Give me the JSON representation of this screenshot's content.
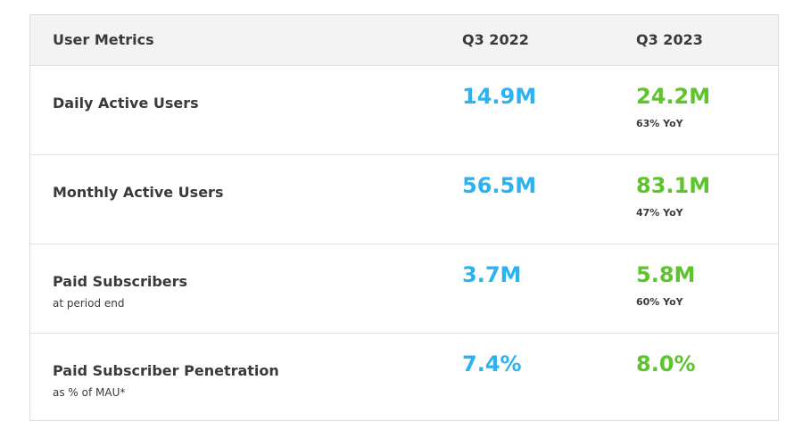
{
  "header": {
    "metric_label": "User Metrics",
    "col_q3_2022": "Q3 2022",
    "col_q3_2023": "Q3 2023"
  },
  "rows": [
    {
      "label": "Daily Active Users",
      "sub": "",
      "q3_2022": "14.9M",
      "q3_2023": "24.2M",
      "yoy": "63% YoY"
    },
    {
      "label": "Monthly Active Users",
      "sub": "",
      "q3_2022": "56.5M",
      "q3_2023": "83.1M",
      "yoy": "47% YoY"
    },
    {
      "label": "Paid Subscribers",
      "sub": "at period end",
      "q3_2022": "3.7M",
      "q3_2023": "5.8M",
      "yoy": "60% YoY"
    },
    {
      "label": "Paid Subscriber Penetration",
      "sub": "as % of MAU*",
      "q3_2022": "7.4%",
      "q3_2023": "8.0%",
      "yoy": ""
    }
  ],
  "colors": {
    "q3_2022_value": "#2ab3f0",
    "q3_2023_value": "#5ec42b",
    "header_bg": "#f3f3f3"
  }
}
